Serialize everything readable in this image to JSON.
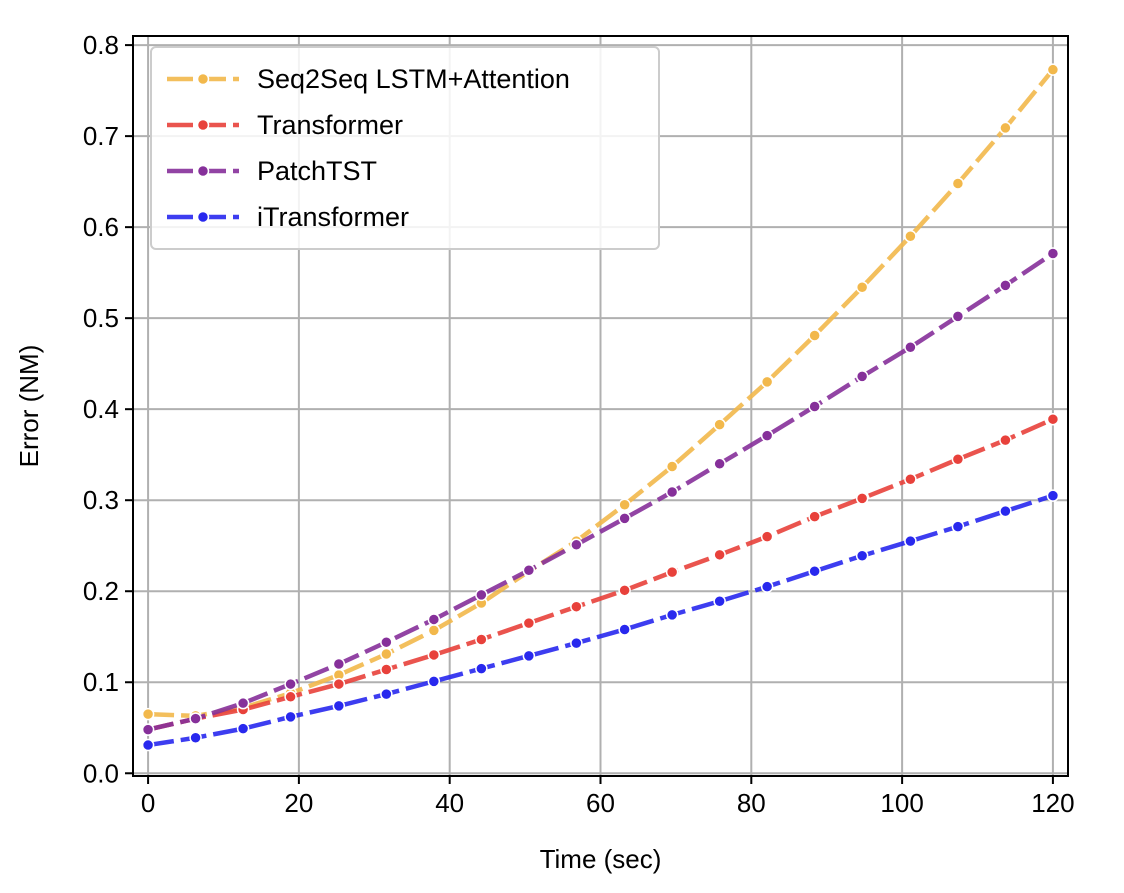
{
  "chart_data": {
    "type": "line",
    "title": "",
    "xlabel": "Time (sec)",
    "ylabel": "Error (NM)",
    "xlim": [
      -2,
      122
    ],
    "ylim": [
      -0.003,
      0.81
    ],
    "xticks": [
      0,
      20,
      40,
      60,
      80,
      100,
      120
    ],
    "yticks": [
      0.0,
      0.1,
      0.2,
      0.3,
      0.4,
      0.5,
      0.6,
      0.7,
      0.8
    ],
    "xtick_labels": [
      "0",
      "20",
      "40",
      "60",
      "80",
      "100",
      "120"
    ],
    "ytick_labels": [
      "0.0",
      "0.1",
      "0.2",
      "0.3",
      "0.4",
      "0.5",
      "0.6",
      "0.7",
      "0.8"
    ],
    "grid": true,
    "legend_position": "top-left",
    "x": [
      0,
      6.3,
      12.6,
      18.9,
      25.3,
      31.6,
      37.9,
      44.2,
      50.5,
      56.8,
      63.2,
      69.5,
      75.8,
      82.1,
      88.4,
      94.7,
      101.1,
      107.4,
      113.7,
      120
    ],
    "series": [
      {
        "name": "Seq2Seq LSTM+Attention",
        "color": "#f2b84b",
        "values": [
          0.065,
          0.063,
          0.072,
          0.088,
          0.108,
          0.131,
          0.157,
          0.187,
          0.222,
          0.255,
          0.295,
          0.337,
          0.383,
          0.43,
          0.481,
          0.534,
          0.59,
          0.648,
          0.709,
          0.773
        ]
      },
      {
        "name": "Transformer",
        "color": "#e8413b",
        "values": [
          0.048,
          0.06,
          0.07,
          0.084,
          0.098,
          0.114,
          0.13,
          0.147,
          0.165,
          0.183,
          0.201,
          0.221,
          0.24,
          0.26,
          0.282,
          0.302,
          0.323,
          0.345,
          0.366,
          0.389
        ]
      },
      {
        "name": "PatchTST",
        "color": "#86309a",
        "values": [
          0.048,
          0.06,
          0.077,
          0.098,
          0.12,
          0.144,
          0.169,
          0.196,
          0.223,
          0.251,
          0.28,
          0.309,
          0.34,
          0.371,
          0.403,
          0.436,
          0.468,
          0.502,
          0.536,
          0.571
        ]
      },
      {
        "name": "iTransformer",
        "color": "#2828ee",
        "values": [
          0.031,
          0.039,
          0.049,
          0.062,
          0.074,
          0.087,
          0.101,
          0.115,
          0.129,
          0.143,
          0.158,
          0.174,
          0.189,
          0.205,
          0.222,
          0.239,
          0.255,
          0.271,
          0.288,
          0.305
        ]
      }
    ]
  }
}
